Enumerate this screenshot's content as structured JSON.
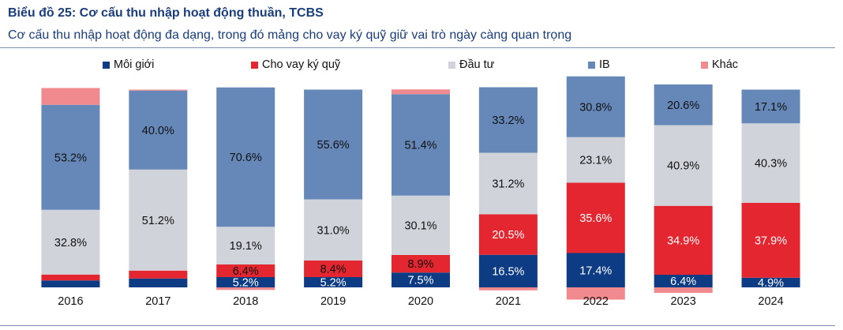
{
  "header": {
    "title": "Biểu đồ 25: Cơ cấu thu nhập hoạt động thuần, TCBS",
    "subtitle": "Cơ cấu thu nhập hoạt động đa dạng, trong đó mảng cho vay ký quỹ giữ vai trò ngày càng quan trọng"
  },
  "chart_data": {
    "type": "bar",
    "stacked": true,
    "categories": [
      "2016",
      "2017",
      "2018",
      "2019",
      "2020",
      "2021",
      "2022",
      "2023",
      "2024"
    ],
    "series": [
      {
        "name": "Môi giới",
        "color": "#0d3b84",
        "values": [
          3.5,
          4.5,
          5.2,
          5.2,
          7.5,
          16.5,
          17.4,
          6.4,
          4.9
        ],
        "labels": [
          "",
          "",
          "5.2%",
          "5.2%",
          "7.5%",
          "16.5%",
          "17.4%",
          "6.4%",
          "4.9%"
        ]
      },
      {
        "name": "Cho vay ký quỹ",
        "color": "#e3262f",
        "values": [
          3.0,
          4.0,
          6.4,
          8.4,
          8.9,
          20.5,
          35.6,
          34.9,
          37.9
        ],
        "labels": [
          "",
          "",
          "6.4%",
          "8.4%",
          "8.9%",
          "20.5%",
          "35.6%",
          "34.9%",
          "37.9%"
        ]
      },
      {
        "name": "Đầu tư",
        "color": "#d0d3da",
        "values": [
          32.8,
          51.2,
          19.1,
          31.0,
          30.1,
          31.2,
          23.1,
          40.9,
          40.3
        ],
        "labels": [
          "32.8%",
          "51.2%",
          "19.1%",
          "31.0%",
          "30.1%",
          "31.2%",
          "23.1%",
          "40.9%",
          "40.3%"
        ]
      },
      {
        "name": "IB",
        "color": "#6688b8",
        "values": [
          53.2,
          40.0,
          70.6,
          55.6,
          51.4,
          33.2,
          30.8,
          20.6,
          17.1
        ],
        "labels": [
          "53.2%",
          "40.0%",
          "70.6%",
          "55.6%",
          "51.4%",
          "33.2%",
          "30.8%",
          "20.6%",
          "17.1%"
        ]
      },
      {
        "name": "Khác",
        "color": "#f08a8e",
        "values": [
          8.5,
          0.5,
          -1.3,
          0.0,
          2.4,
          -1.5,
          -6.2,
          -2.8,
          0.0
        ],
        "labels": [
          "",
          "",
          "",
          "",
          "",
          "",
          "",
          "",
          ""
        ]
      }
    ],
    "ylim": [
      -6.5,
      102
    ],
    "legend_position": "top",
    "grid": false
  }
}
